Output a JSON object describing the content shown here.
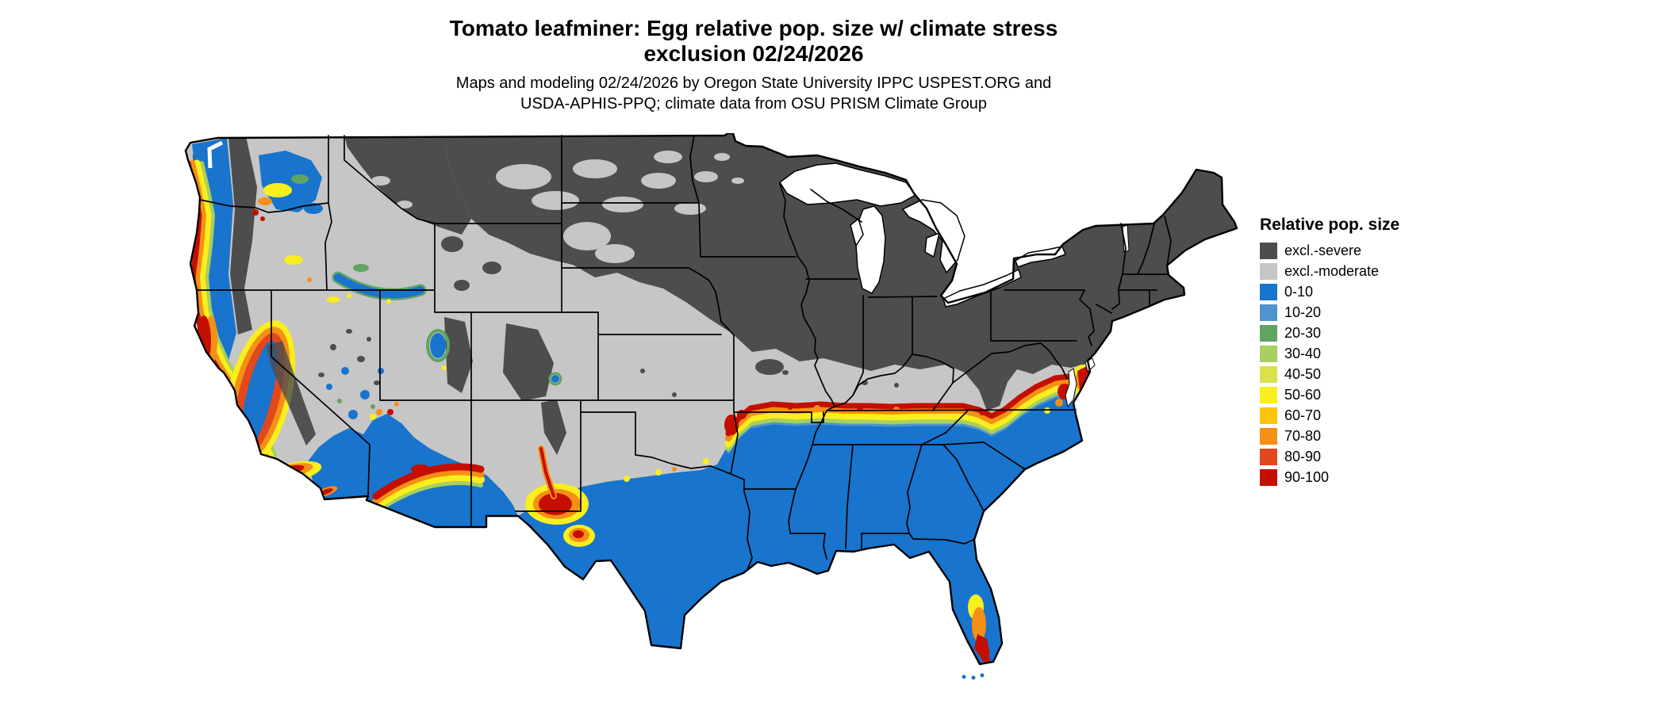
{
  "header": {
    "title_line1": "Tomato leafminer: Egg relative pop. size w/ climate stress",
    "title_line2": "exclusion 02/24/2026",
    "subtitle_line1": "Maps and modeling 02/24/2026 by Oregon State University IPPC USPEST.ORG and",
    "subtitle_line2": "USDA-APHIS-PPQ; climate data from OSU PRISM Climate Group"
  },
  "legend": {
    "title": "Relative pop. size",
    "items": [
      {
        "label": "excl.-severe",
        "color": "#4d4d4d"
      },
      {
        "label": "excl.-moderate",
        "color": "#c6c6c6"
      },
      {
        "label": "0-10",
        "color": "#1874cd"
      },
      {
        "label": "10-20",
        "color": "#4f94cd"
      },
      {
        "label": "20-30",
        "color": "#61a361"
      },
      {
        "label": "30-40",
        "color": "#a8cf5f"
      },
      {
        "label": "40-50",
        "color": "#d9e14c"
      },
      {
        "label": "50-60",
        "color": "#f9ee1e"
      },
      {
        "label": "60-70",
        "color": "#fdc40e"
      },
      {
        "label": "70-80",
        "color": "#f58f15"
      },
      {
        "label": "80-90",
        "color": "#e2471d"
      },
      {
        "label": "90-100",
        "color": "#c40f00"
      }
    ]
  }
}
